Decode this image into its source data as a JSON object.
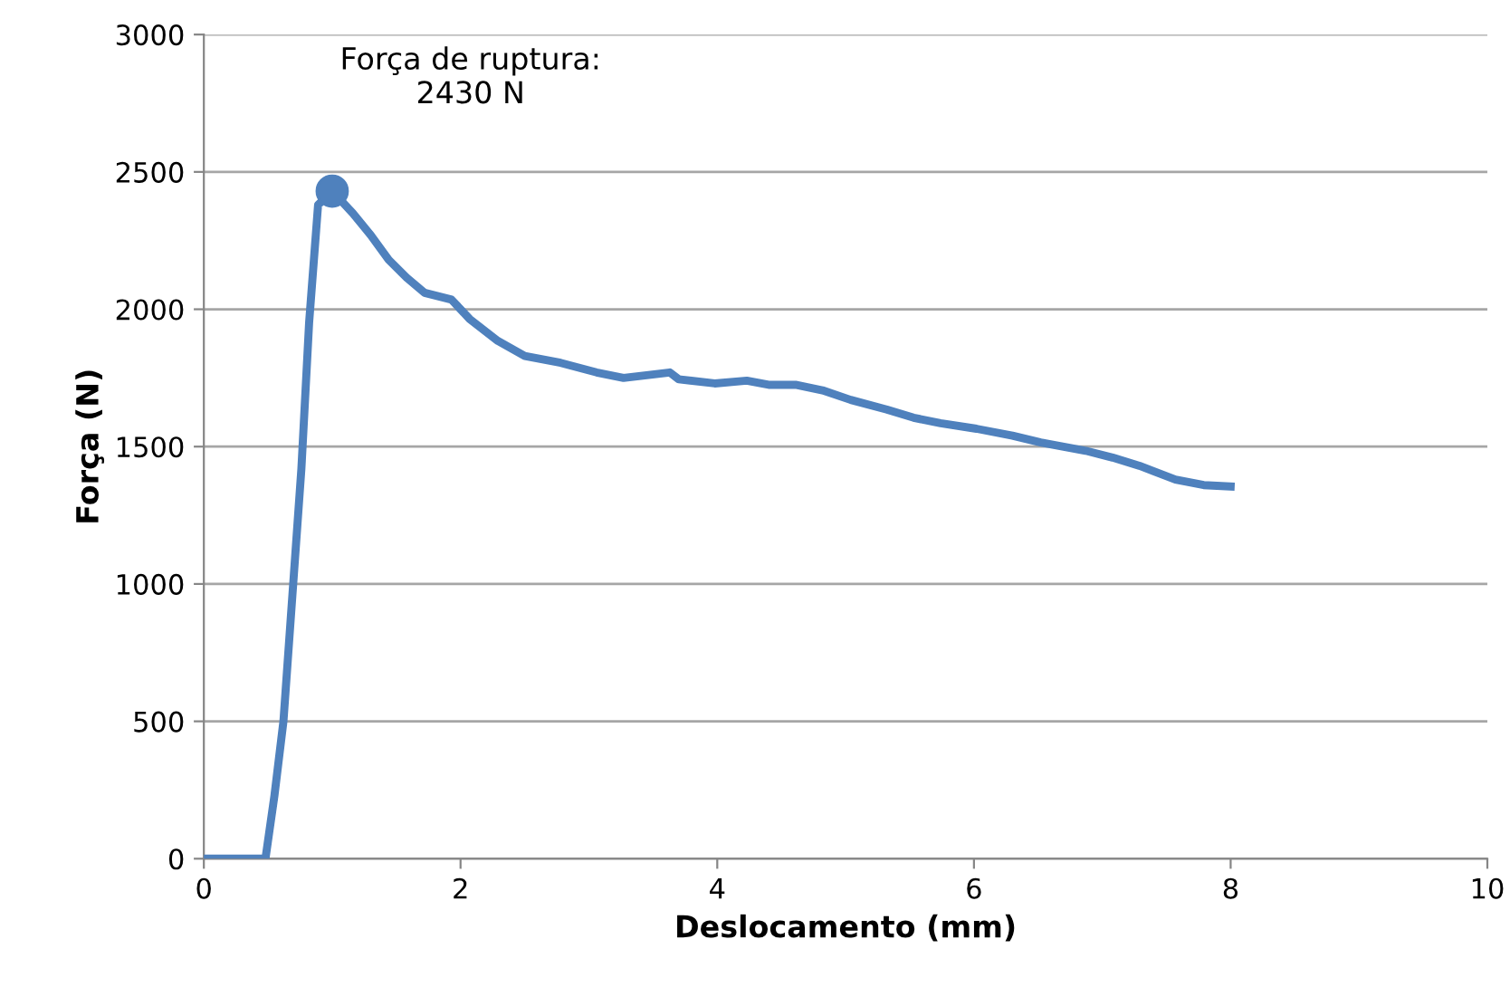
{
  "chart_data": {
    "type": "line",
    "xlabel": "Deslocamento (mm)",
    "ylabel": "Força (N)",
    "xlim": [
      0,
      10
    ],
    "xticks": [
      0,
      2,
      4,
      6,
      8,
      10
    ],
    "ylim": [
      0,
      3000
    ],
    "yticks": [
      0,
      500,
      1000,
      1500,
      2000,
      2500,
      3000
    ],
    "grid": "y",
    "legend": false,
    "line_style": "solid",
    "series": [
      {
        "color": "#4f81bd",
        "marker": "none",
        "x": [
          0,
          0.48,
          0.55,
          0.62,
          0.69,
          0.76,
          0.82,
          0.89,
          1.0,
          1.16,
          1.3,
          1.44,
          1.58,
          1.72,
          1.93,
          2.07,
          2.29,
          2.5,
          2.78,
          3.06,
          3.27,
          3.63,
          3.7,
          3.98,
          4.23,
          4.4,
          4.61,
          4.82,
          5.04,
          5.32,
          5.53,
          5.74,
          6.02,
          6.3,
          6.52,
          6.87,
          7.08,
          7.29,
          7.57,
          7.79,
          8.0
        ],
        "values": [
          0,
          0,
          230,
          500,
          960,
          1420,
          1950,
          2380,
          2430,
          2350,
          2270,
          2180,
          2115,
          2060,
          2035,
          1965,
          1885,
          1830,
          1805,
          1770,
          1750,
          1770,
          1745,
          1730,
          1740,
          1725,
          1725,
          1705,
          1670,
          1635,
          1605,
          1585,
          1565,
          1540,
          1515,
          1485,
          1460,
          1430,
          1380,
          1360,
          1355
        ]
      },
      {
        "type": "scatter",
        "marker": "circle",
        "color": "#4f81bd",
        "x": [
          1.0
        ],
        "values": [
          2430
        ]
      }
    ],
    "annotations": [
      {
        "text": "Força de ruptura:\n2430 N",
        "x": 1.0,
        "y": 2430
      }
    ]
  }
}
